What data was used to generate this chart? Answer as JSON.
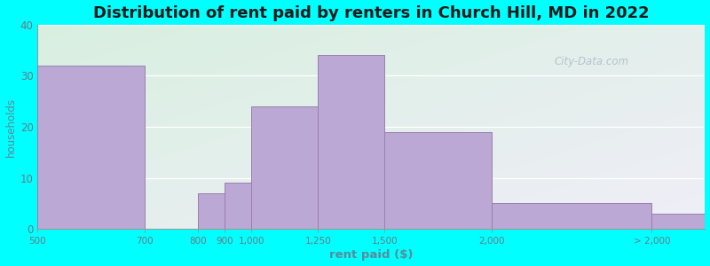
{
  "title": "Distribution of rent paid by renters in Church Hill, MD in 2022",
  "xlabel": "rent paid ($)",
  "ylabel": "households",
  "bar_color": "#BBA8D4",
  "bar_edge_color": "#9B7FAD",
  "background_outer": "#00FFFF",
  "background_top_left": "#D8F0E0",
  "background_bottom_right": "#F0EEF8",
  "ylim": [
    0,
    40
  ],
  "yticks": [
    0,
    10,
    20,
    30,
    40
  ],
  "watermark": "City-Data.com",
  "title_fontsize": 13,
  "axis_label_color": "#5B8A9A",
  "tick_label_color": "#6A7A85",
  "tick_positions": [
    0.0,
    2.0,
    3.0,
    3.5,
    4.0,
    5.25,
    6.5,
    8.5,
    11.5
  ],
  "tick_labels": [
    "500",
    "700",
    "800",
    "900",
    "1,000",
    "1,250",
    "1,500",
    "2,000",
    "> 2,000"
  ],
  "bar_lefts": [
    0.0,
    3.0,
    3.5,
    4.0,
    5.25,
    6.5,
    8.5,
    11.5
  ],
  "bar_rights": [
    2.0,
    3.5,
    4.0,
    5.25,
    6.5,
    8.5,
    11.5,
    12.5
  ],
  "bar_heights": [
    32,
    7,
    9,
    24,
    34,
    19,
    5,
    3
  ],
  "xlim": [
    0,
    12.5
  ]
}
